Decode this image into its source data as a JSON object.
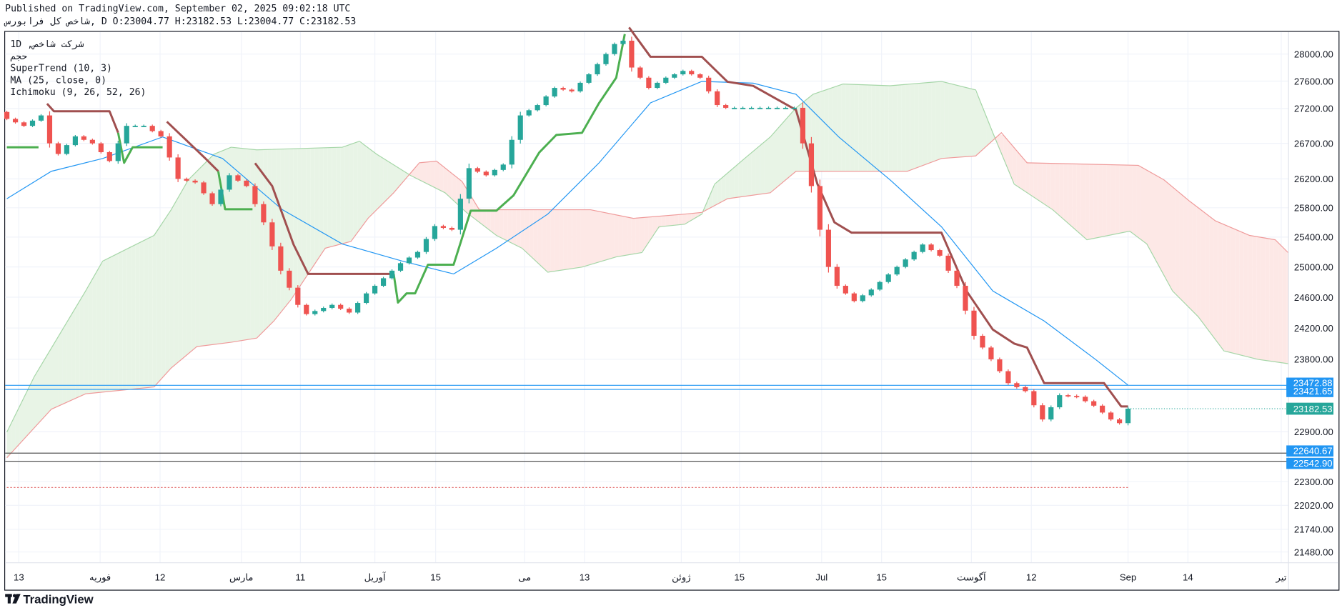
{
  "header": {
    "published": "Published on TradingView.com, September 02, 2025 09:02:18 UTC",
    "symbol": "سروبارف لک صخاش",
    "ohlc": ", D O:23004.77 H:23182.53 L:23004.77 C:23182.53"
  },
  "legend": {
    "title": "1D ,صخاش تکرش",
    "volume": "مجح",
    "supertrend": "SuperTrend (10, 3)",
    "ma": "MA (25, close, 0)",
    "ichimoku": "Ichimoku (9, 26, 52, 26)"
  },
  "footer": {
    "brand": "TradingView"
  },
  "colors": {
    "up": "#26a69a",
    "down": "#ef5350",
    "ma": "#2196f3",
    "supertrend_up": "#4caf50",
    "supertrend_down": "#a04f4f",
    "cloud_up": "#e8f4e6",
    "cloud_down": "#fde8e6",
    "span_a": "#a5d6a7",
    "span_b": "#ef9a9a",
    "level": "#2196f3",
    "level_dark": "#555555"
  },
  "chart_data": {
    "type": "candlestick",
    "title": "شاخص کل فرابورس",
    "interval": "1D",
    "price_axis": {
      "scale": "log",
      "ticks": [
        "28000.00",
        "27600.00",
        "27200.00",
        "26700.00",
        "26200.00",
        "25800.00",
        "25400.00",
        "25000.00",
        "24600.00",
        "24200.00",
        "23800.00",
        "22900.00",
        "22300.00",
        "22020.00",
        "21740.00",
        "21480.00"
      ]
    },
    "time_axis": {
      "labels": [
        {
          "bar": 1.4,
          "text": "13"
        },
        {
          "bar": 10.9,
          "text": "فوریه"
        },
        {
          "bar": 17.9,
          "text": "12"
        },
        {
          "bar": 27.4,
          "text": "مارس"
        },
        {
          "bar": 34.3,
          "text": "11"
        },
        {
          "bar": 43,
          "text": "آوریل"
        },
        {
          "bar": 50.1,
          "text": "15"
        },
        {
          "bar": 60.5,
          "text": "می"
        },
        {
          "bar": 67.5,
          "text": "13"
        },
        {
          "bar": 78.8,
          "text": "ژوئن"
        },
        {
          "bar": 85.6,
          "text": "15"
        },
        {
          "bar": 95.2,
          "text": "Jul"
        },
        {
          "bar": 102.2,
          "text": "15"
        },
        {
          "bar": 112.7,
          "text": "آگوست"
        },
        {
          "bar": 119.7,
          "text": "12"
        },
        {
          "bar": 131,
          "text": "Sep"
        },
        {
          "bar": 138,
          "text": "14"
        },
        {
          "bar": 148.9,
          "text": "تیر"
        }
      ]
    },
    "close_keypoints": [
      [
        0,
        27050
      ],
      [
        2,
        26950
      ],
      [
        4,
        27100
      ],
      [
        5,
        26700
      ],
      [
        6,
        26550
      ],
      [
        8,
        26800
      ],
      [
        10,
        26700
      ],
      [
        12,
        26450
      ],
      [
        14,
        26950
      ],
      [
        16,
        26950
      ],
      [
        18,
        26800
      ],
      [
        20,
        26200
      ],
      [
        22,
        26150
      ],
      [
        24,
        25850
      ],
      [
        26,
        26250
      ],
      [
        28,
        26100
      ],
      [
        30,
        25600
      ],
      [
        32,
        24950
      ],
      [
        34,
        24500
      ],
      [
        35,
        24380
      ],
      [
        38,
        24500
      ],
      [
        40,
        24400
      ],
      [
        42,
        24650
      ],
      [
        44,
        24850
      ],
      [
        46,
        25050
      ],
      [
        48,
        25200
      ],
      [
        50,
        25550
      ],
      [
        52,
        25500
      ],
      [
        54,
        26350
      ],
      [
        56,
        26250
      ],
      [
        58,
        26400
      ],
      [
        60,
        27100
      ],
      [
        62,
        27250
      ],
      [
        64,
        27500
      ],
      [
        66,
        27450
      ],
      [
        68,
        27700
      ],
      [
        70,
        28000
      ],
      [
        71,
        28150
      ],
      [
        72,
        28200
      ],
      [
        73,
        27800
      ],
      [
        75,
        27500
      ],
      [
        77,
        27650
      ],
      [
        79,
        27750
      ],
      [
        81,
        27650
      ],
      [
        83,
        27250
      ],
      [
        84,
        27210
      ],
      [
        92,
        27210
      ],
      [
        93,
        26700
      ],
      [
        94,
        26100
      ],
      [
        95,
        25500
      ],
      [
        96,
        25000
      ],
      [
        97,
        24750
      ],
      [
        99,
        24550
      ],
      [
        101,
        24700
      ],
      [
        104,
        25000
      ],
      [
        107,
        25300
      ],
      [
        109,
        25150
      ],
      [
        111,
        24750
      ],
      [
        113,
        24100
      ],
      [
        115,
        23800
      ],
      [
        117,
        23500
      ],
      [
        119,
        23400
      ],
      [
        121,
        23050
      ],
      [
        123,
        23350
      ],
      [
        125,
        23330
      ],
      [
        127,
        23220
      ],
      [
        129,
        23050
      ],
      [
        130,
        23004.77
      ],
      [
        131,
        23182.53
      ]
    ],
    "ma_25": [
      [
        0,
        25925
      ],
      [
        5.2,
        26306
      ],
      [
        11.2,
        26486
      ],
      [
        18.2,
        26791
      ],
      [
        25.2,
        26486
      ],
      [
        32.2,
        25773
      ],
      [
        39.2,
        25307
      ],
      [
        46.2,
        25078
      ],
      [
        52.2,
        24907
      ],
      [
        57.2,
        25250
      ],
      [
        63.2,
        25713
      ],
      [
        69.2,
        26425
      ],
      [
        75.2,
        27282
      ],
      [
        81.2,
        27595
      ],
      [
        87.2,
        27570
      ],
      [
        92.2,
        27407
      ],
      [
        97.2,
        26791
      ],
      [
        103.2,
        26186
      ],
      [
        109.2,
        25540
      ],
      [
        115.2,
        24682
      ],
      [
        121.2,
        24291
      ],
      [
        127.2,
        23799
      ],
      [
        131,
        23475
      ]
    ],
    "supertrend": [
      {
        "trend": "up",
        "points": [
          [
            0,
            26645
          ],
          [
            3.7,
            26645
          ]
        ]
      },
      {
        "trend": "down",
        "points": [
          [
            4.7,
            27270
          ],
          [
            5.5,
            27160
          ],
          [
            12,
            27160
          ],
          [
            13,
            26852
          ]
        ]
      },
      {
        "trend": "up",
        "points": [
          [
            13,
            26852
          ],
          [
            13.7,
            26425
          ],
          [
            14.7,
            26645
          ],
          [
            18.2,
            26645
          ]
        ]
      },
      {
        "trend": "down",
        "points": [
          [
            18.7,
            27010
          ],
          [
            23.2,
            26486
          ],
          [
            24.7,
            26306
          ]
        ]
      },
      {
        "trend": "up",
        "points": [
          [
            24.7,
            26306
          ],
          [
            25.5,
            25780
          ],
          [
            28.7,
            25780
          ]
        ]
      },
      {
        "trend": "down",
        "points": [
          [
            29,
            26420
          ],
          [
            31,
            26100
          ],
          [
            33.5,
            25300
          ],
          [
            35.2,
            24907
          ],
          [
            45,
            24907
          ]
        ]
      },
      {
        "trend": "up",
        "points": [
          [
            45.2,
            24907
          ],
          [
            45.7,
            24530
          ],
          [
            46.7,
            24650
          ],
          [
            47.7,
            24650
          ],
          [
            49.2,
            25030
          ],
          [
            52.2,
            25030
          ],
          [
            54.2,
            25760
          ],
          [
            57.2,
            25760
          ],
          [
            59.2,
            25970
          ],
          [
            62.2,
            26570
          ],
          [
            64.2,
            26820
          ],
          [
            67.2,
            26850
          ],
          [
            69.2,
            27280
          ],
          [
            71.2,
            27650
          ],
          [
            72.2,
            28300
          ]
        ]
      },
      {
        "trend": "down",
        "points": [
          [
            72.7,
            28400
          ],
          [
            75.2,
            27960
          ],
          [
            81.2,
            27960
          ],
          [
            84.2,
            27590
          ],
          [
            87.2,
            27530
          ],
          [
            92.2,
            27180
          ],
          [
            94.7,
            26130
          ],
          [
            96.7,
            25600
          ],
          [
            98.7,
            25460
          ],
          [
            109.2,
            25460
          ],
          [
            112.2,
            24670
          ],
          [
            115.2,
            24180
          ],
          [
            117.7,
            24000
          ],
          [
            119.2,
            23950
          ],
          [
            121.2,
            23500
          ],
          [
            128.2,
            23500
          ],
          [
            130.2,
            23210
          ],
          [
            131,
            23210
          ]
        ]
      }
    ],
    "ichimoku": {
      "span_a": [
        [
          0,
          22895
        ],
        [
          3.2,
          23581
        ],
        [
          6.2,
          24125
        ],
        [
          9.2,
          24682
        ],
        [
          11.2,
          25078
        ],
        [
          14.2,
          25250
        ],
        [
          17.2,
          25423
        ],
        [
          19.2,
          25773
        ],
        [
          21.2,
          26186
        ],
        [
          24.2,
          26547
        ],
        [
          26.2,
          26645
        ],
        [
          29.2,
          26608
        ],
        [
          39.2,
          26645
        ],
        [
          41.2,
          26730
        ],
        [
          43.2,
          26547
        ],
        [
          47.2,
          26246
        ],
        [
          51.2,
          26007
        ],
        [
          53.7,
          25736
        ],
        [
          57.2,
          25423
        ],
        [
          60.2,
          25250
        ],
        [
          63.2,
          24930
        ],
        [
          67.2,
          24998
        ],
        [
          71.2,
          25134
        ],
        [
          74.2,
          25192
        ],
        [
          76.2,
          25540
        ],
        [
          79.2,
          25575
        ],
        [
          81.2,
          25713
        ],
        [
          82.7,
          26127
        ],
        [
          86.2,
          26486
        ],
        [
          89.2,
          26791
        ],
        [
          92.2,
          27208
        ],
        [
          94.2,
          27407
        ],
        [
          97.7,
          27557
        ],
        [
          103.2,
          27532
        ],
        [
          109.2,
          27595
        ],
        [
          113.2,
          27470
        ],
        [
          115.2,
          26852
        ],
        [
          117.7,
          26127
        ],
        [
          122.2,
          25773
        ],
        [
          126.2,
          25364
        ],
        [
          131.2,
          25481
        ],
        [
          133.2,
          25307
        ],
        [
          136.2,
          24682
        ],
        [
          139.2,
          24346
        ],
        [
          142.2,
          23907
        ],
        [
          146.2,
          23799
        ],
        [
          149.7,
          23745
        ]
      ],
      "span_b": [
        [
          0,
          22585
        ],
        [
          5.2,
          23176
        ],
        [
          9.2,
          23367
        ],
        [
          17.2,
          23453
        ],
        [
          19.2,
          23690
        ],
        [
          22.2,
          23962
        ],
        [
          26.2,
          24017
        ],
        [
          29.2,
          24071
        ],
        [
          31.2,
          24291
        ],
        [
          33.2,
          24568
        ],
        [
          37.2,
          25250
        ],
        [
          40.2,
          25341
        ],
        [
          42.2,
          25655
        ],
        [
          45.2,
          26007
        ],
        [
          48.2,
          26425
        ],
        [
          50.2,
          26449
        ],
        [
          53.2,
          26162
        ],
        [
          55.2,
          25773
        ],
        [
          68.2,
          25773
        ],
        [
          73.2,
          25655
        ],
        [
          79.2,
          25713
        ],
        [
          81.2,
          25736
        ],
        [
          84.2,
          25925
        ],
        [
          89.2,
          26007
        ],
        [
          92.2,
          26306
        ],
        [
          105.2,
          26306
        ],
        [
          109.2,
          26486
        ],
        [
          113.2,
          26522
        ],
        [
          116.2,
          26852
        ],
        [
          119.2,
          26425
        ],
        [
          132.2,
          26389
        ],
        [
          135.2,
          26186
        ],
        [
          138.2,
          25890
        ],
        [
          141.2,
          25621
        ],
        [
          145.2,
          25423
        ],
        [
          148.2,
          25364
        ],
        [
          149.7,
          25192
        ]
      ]
    },
    "levels": [
      {
        "price": 23472.88,
        "label": "23472.88",
        "style": "blue"
      },
      {
        "price": 23421.65,
        "label": "23421.65",
        "style": "blue"
      },
      {
        "price": 22640.67,
        "label": "22640.67",
        "style": "dark"
      },
      {
        "price": 22542.9,
        "label": "22542.90",
        "style": "dark"
      }
    ],
    "last_price": {
      "price": 23182.53,
      "label": "23182.53"
    },
    "dotted_level": 22230
  }
}
